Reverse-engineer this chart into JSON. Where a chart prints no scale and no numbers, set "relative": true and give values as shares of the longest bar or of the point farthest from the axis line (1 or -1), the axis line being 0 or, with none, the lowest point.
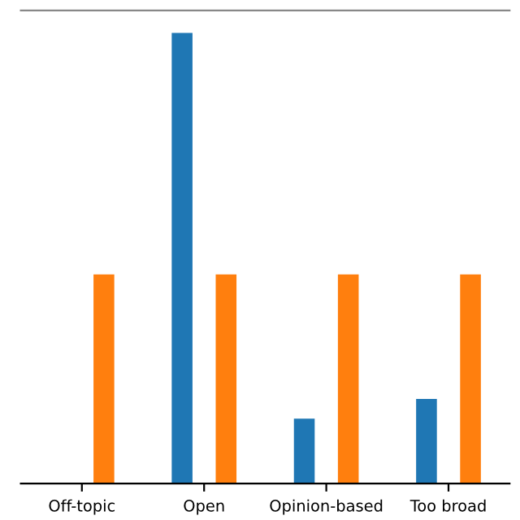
{
  "chart_data": {
    "type": "bar",
    "relative": true,
    "categories": [
      "Off-topic",
      "Open",
      "Opinion-based",
      "Too broad"
    ],
    "series": [
      {
        "color": "#1f77b4",
        "values": [
          null,
          1,
          0.144,
          0.188
        ]
      },
      {
        "color": "#ff7f0e",
        "values": [
          0.464,
          0.464,
          0.464,
          0.464
        ]
      }
    ],
    "grid": false,
    "legend": false
  }
}
